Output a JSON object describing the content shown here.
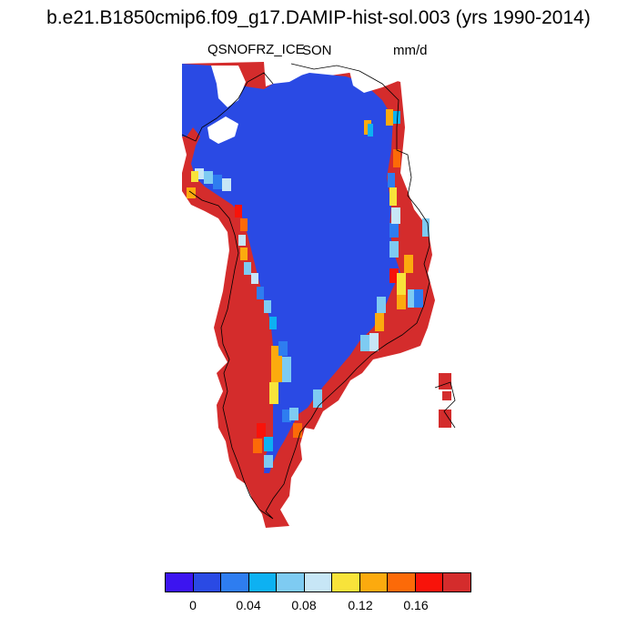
{
  "header": {
    "title": "b.e21.B1850cmip6.f09_g17.DAMIP-hist-sol.003 (yrs 1990-2014)",
    "variable": "QSNOFRZ_ICE",
    "season": "SON",
    "units": "mm/d"
  },
  "colorbar": {
    "colors": [
      "#3c14f0",
      "#2a4ae4",
      "#2e7df0",
      "#0db1f2",
      "#7ecbf2",
      "#c7e6f6",
      "#f8e33a",
      "#fcaa0e",
      "#fc6a08",
      "#f8130a",
      "#d42c2c"
    ],
    "labels": [
      "0",
      "0.04",
      "0.08",
      "0.12",
      "0.16"
    ]
  },
  "map": {
    "region": "Greenland",
    "ice_sheet_color": "#2a4ae4",
    "margin_color": "#d42c2c",
    "ocean_color": "#ffffff"
  }
}
